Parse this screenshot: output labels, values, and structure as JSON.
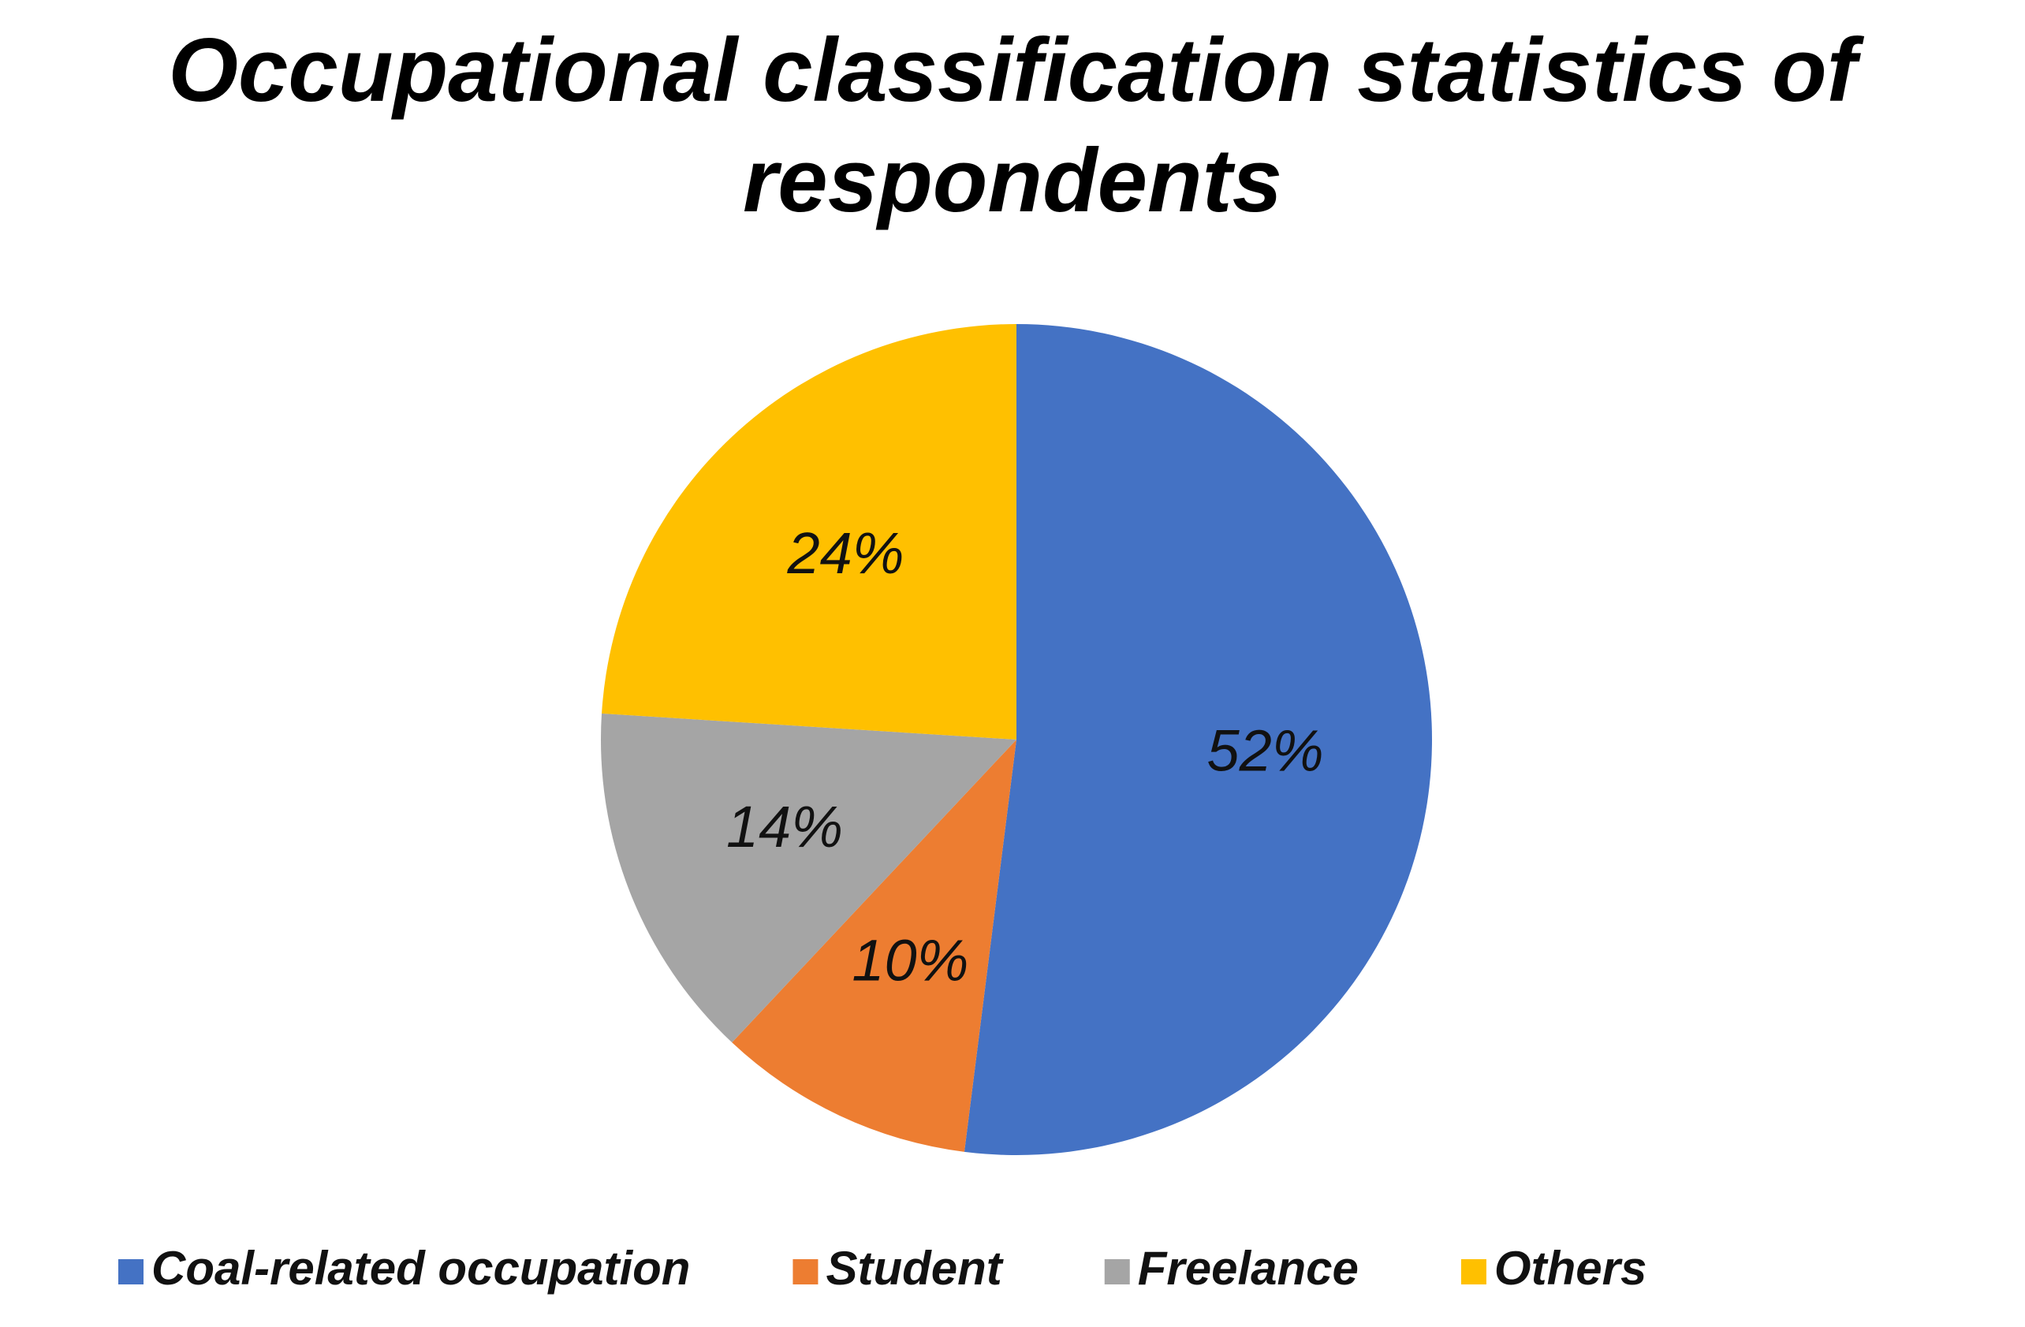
{
  "chart_data": {
    "type": "pie",
    "title": "Occupational classification statistics of respondents",
    "categories": [
      "Coal-related occupation",
      "Student",
      "Freelance",
      "Others"
    ],
    "values": [
      52,
      10,
      14,
      24
    ],
    "value_labels": [
      "52%",
      "10%",
      "14%",
      "24%"
    ],
    "colors": [
      "#4472c4",
      "#ed7d31",
      "#a5a5a5",
      "#ffc000"
    ],
    "legend": "bottom"
  }
}
